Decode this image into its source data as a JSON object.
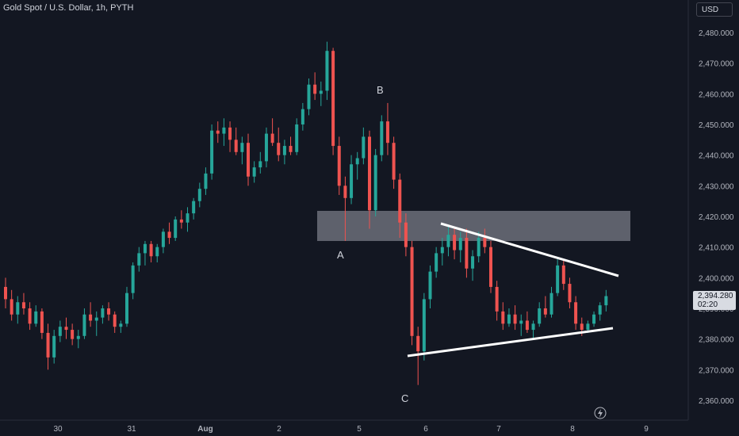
{
  "header": {
    "title": "Gold Spot / U.S. Dollar, 1h, PYTH",
    "currency": "USD"
  },
  "price_tag": {
    "price": "2,394.280",
    "countdown": "02:20"
  },
  "icons": {
    "replay": "lightning-icon"
  },
  "colors": {
    "up": "#26a69a",
    "down": "#ef5350",
    "background": "#131722",
    "trendline": "#ffffff",
    "zone": "#787b86"
  },
  "chart_data": {
    "type": "candlestick",
    "title": "Gold Spot / U.S. Dollar, 1h, PYTH",
    "ylim": [
      2355,
      2485
    ],
    "y_ticks": [
      "2,360.000",
      "2,370.000",
      "2,380.000",
      "2,390.000",
      "2,400.000",
      "2,410.000",
      "2,420.000",
      "2,430.000",
      "2,440.000",
      "2,450.000",
      "2,460.000",
      "2,470.000",
      "2,480.000"
    ],
    "y_tick_values": [
      2360,
      2370,
      2380,
      2390,
      2400,
      2410,
      2420,
      2430,
      2440,
      2450,
      2460,
      2470,
      2480
    ],
    "x_ticks": [
      "30",
      "31",
      "Aug",
      "2",
      "5",
      "6",
      "7",
      "8",
      "9"
    ],
    "annotations": [
      "A",
      "B",
      "C"
    ],
    "grid": false,
    "candles": [
      [
        2397,
        2400,
        2390,
        2393
      ],
      [
        2393,
        2396,
        2386,
        2388
      ],
      [
        2388,
        2394,
        2385,
        2392
      ],
      [
        2392,
        2395,
        2388,
        2390
      ],
      [
        2390,
        2392,
        2383,
        2385
      ],
      [
        2385,
        2391,
        2384,
        2389
      ],
      [
        2389,
        2390,
        2380,
        2382
      ],
      [
        2382,
        2385,
        2370,
        2374
      ],
      [
        2374,
        2383,
        2372,
        2381
      ],
      [
        2381,
        2386,
        2379,
        2384
      ],
      [
        2384,
        2387,
        2380,
        2383
      ],
      [
        2383,
        2385,
        2378,
        2380
      ],
      [
        2380,
        2383,
        2377,
        2381
      ],
      [
        2381,
        2390,
        2380,
        2388
      ],
      [
        2388,
        2392,
        2384,
        2386
      ],
      [
        2386,
        2389,
        2381,
        2387
      ],
      [
        2387,
        2391,
        2385,
        2390
      ],
      [
        2390,
        2392,
        2386,
        2388
      ],
      [
        2388,
        2389,
        2382,
        2384
      ],
      [
        2384,
        2386,
        2382,
        2385
      ],
      [
        2385,
        2397,
        2384,
        2395
      ],
      [
        2395,
        2405,
        2393,
        2404
      ],
      [
        2404,
        2410,
        2402,
        2408
      ],
      [
        2408,
        2412,
        2404,
        2411
      ],
      [
        2411,
        2412,
        2405,
        2407
      ],
      [
        2407,
        2411,
        2405,
        2410
      ],
      [
        2410,
        2416,
        2408,
        2415
      ],
      [
        2415,
        2418,
        2411,
        2413
      ],
      [
        2413,
        2420,
        2412,
        2419
      ],
      [
        2419,
        2422,
        2416,
        2418
      ],
      [
        2418,
        2423,
        2415,
        2421
      ],
      [
        2421,
        2426,
        2419,
        2425
      ],
      [
        2425,
        2431,
        2423,
        2429
      ],
      [
        2429,
        2436,
        2427,
        2434
      ],
      [
        2434,
        2450,
        2432,
        2448
      ],
      [
        2448,
        2451,
        2444,
        2447
      ],
      [
        2447,
        2452,
        2443,
        2449
      ],
      [
        2449,
        2451,
        2441,
        2445
      ],
      [
        2445,
        2449,
        2440,
        2441
      ],
      [
        2441,
        2446,
        2437,
        2444
      ],
      [
        2444,
        2447,
        2430,
        2433
      ],
      [
        2433,
        2438,
        2431,
        2436
      ],
      [
        2436,
        2441,
        2434,
        2438
      ],
      [
        2438,
        2449,
        2436,
        2447
      ],
      [
        2447,
        2452,
        2443,
        2444
      ],
      [
        2444,
        2449,
        2438,
        2440
      ],
      [
        2440,
        2445,
        2437,
        2443
      ],
      [
        2443,
        2446,
        2440,
        2441
      ],
      [
        2441,
        2452,
        2440,
        2450
      ],
      [
        2450,
        2457,
        2448,
        2455
      ],
      [
        2455,
        2465,
        2453,
        2463
      ],
      [
        2463,
        2467,
        2458,
        2460
      ],
      [
        2460,
        2464,
        2456,
        2461
      ],
      [
        2461,
        2477,
        2458,
        2474
      ],
      [
        2474,
        2475,
        2440,
        2443
      ],
      [
        2443,
        2446,
        2427,
        2430
      ],
      [
        2430,
        2433,
        2412,
        2426
      ],
      [
        2426,
        2440,
        2424,
        2437
      ],
      [
        2437,
        2441,
        2432,
        2439
      ],
      [
        2439,
        2449,
        2437,
        2446
      ],
      [
        2446,
        2448,
        2416,
        2422
      ],
      [
        2422,
        2442,
        2420,
        2440
      ],
      [
        2440,
        2453,
        2438,
        2451
      ],
      [
        2451,
        2457,
        2440,
        2444
      ],
      [
        2444,
        2446,
        2429,
        2432
      ],
      [
        2432,
        2434,
        2413,
        2418
      ],
      [
        2418,
        2421,
        2407,
        2410
      ],
      [
        2410,
        2412,
        2378,
        2381
      ],
      [
        2381,
        2384,
        2365,
        2376
      ],
      [
        2376,
        2395,
        2373,
        2393
      ],
      [
        2393,
        2404,
        2390,
        2402
      ],
      [
        2402,
        2410,
        2400,
        2408
      ],
      [
        2408,
        2413,
        2404,
        2410
      ],
      [
        2410,
        2417,
        2407,
        2414
      ],
      [
        2414,
        2416,
        2406,
        2409
      ],
      [
        2409,
        2415,
        2405,
        2413
      ],
      [
        2413,
        2416,
        2400,
        2403
      ],
      [
        2403,
        2409,
        2399,
        2407
      ],
      [
        2407,
        2415,
        2405,
        2413
      ],
      [
        2413,
        2416,
        2408,
        2410
      ],
      [
        2410,
        2412,
        2395,
        2397
      ],
      [
        2397,
        2399,
        2386,
        2389
      ],
      [
        2389,
        2392,
        2383,
        2385
      ],
      [
        2385,
        2390,
        2384,
        2388
      ],
      [
        2388,
        2391,
        2383,
        2385
      ],
      [
        2385,
        2388,
        2381,
        2386
      ],
      [
        2386,
        2389,
        2382,
        2383
      ],
      [
        2383,
        2386,
        2380,
        2385
      ],
      [
        2385,
        2392,
        2384,
        2390
      ],
      [
        2390,
        2394,
        2387,
        2388
      ],
      [
        2388,
        2397,
        2387,
        2395
      ],
      [
        2395,
        2406,
        2394,
        2404
      ],
      [
        2404,
        2406,
        2396,
        2398
      ],
      [
        2398,
        2400,
        2390,
        2392
      ],
      [
        2392,
        2394,
        2383,
        2385
      ],
      [
        2385,
        2387,
        2381,
        2383
      ],
      [
        2383,
        2386,
        2382,
        2385
      ],
      [
        2385,
        2389,
        2384,
        2388
      ],
      [
        2388,
        2392,
        2386,
        2391
      ],
      [
        2391,
        2396,
        2389,
        2394
      ]
    ]
  }
}
